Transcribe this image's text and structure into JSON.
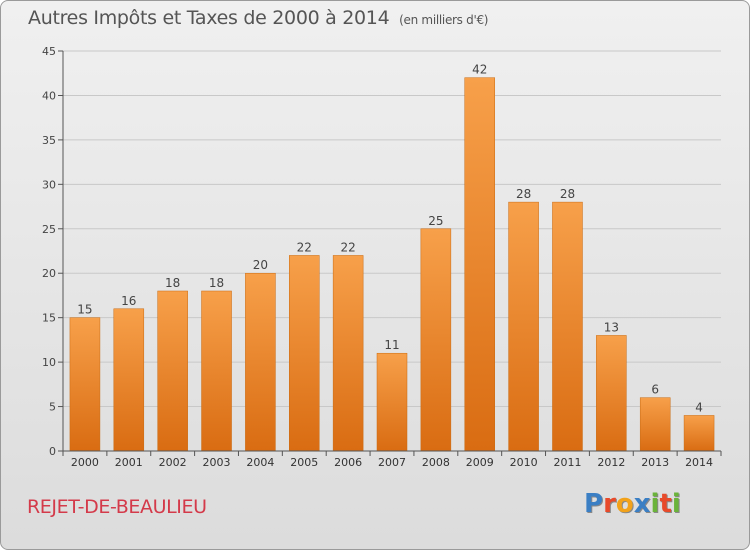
{
  "chart_data": {
    "type": "bar",
    "title": "Autres Impôts et Taxes de 2000 à 2014",
    "subtitle": "(en milliers d'€)",
    "categories": [
      "2000",
      "2001",
      "2002",
      "2003",
      "2004",
      "2005",
      "2006",
      "2007",
      "2008",
      "2009",
      "2010",
      "2011",
      "2012",
      "2013",
      "2014"
    ],
    "values": [
      15,
      16,
      18,
      18,
      20,
      22,
      22,
      11,
      25,
      42,
      28,
      28,
      13,
      6,
      4
    ],
    "ylim": [
      0,
      45
    ],
    "yticks": [
      0,
      5,
      10,
      15,
      20,
      25,
      30,
      35,
      40,
      45
    ],
    "grid": true,
    "bar_color": "#f28c28"
  },
  "footer": {
    "town": "REJET-DE-BEAULIEU",
    "logo_letters": [
      {
        "ch": "P",
        "color": "#3b7fc4"
      },
      {
        "ch": "r",
        "color": "#e84a2a"
      },
      {
        "ch": "o",
        "color": "#f2a21a"
      },
      {
        "ch": "x",
        "color": "#3b7fc4"
      },
      {
        "ch": "i",
        "color": "#6bb33a"
      },
      {
        "ch": "t",
        "color": "#e84a2a"
      },
      {
        "ch": "i",
        "color": "#6bb33a"
      }
    ]
  }
}
